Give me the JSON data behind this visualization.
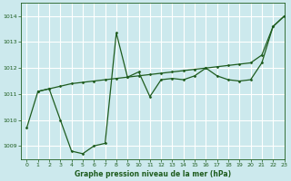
{
  "title": "Graphe pression niveau de la mer (hPa)",
  "background_color": "#cce9ed",
  "grid_color": "#ffffff",
  "line_color": "#1e5c1e",
  "marker_color": "#1e5c1e",
  "xlim": [
    -0.5,
    23
  ],
  "ylim": [
    1008.5,
    1014.5
  ],
  "yticks": [
    1009,
    1010,
    1011,
    1012,
    1013,
    1014
  ],
  "xticks": [
    0,
    1,
    2,
    3,
    4,
    5,
    6,
    7,
    8,
    9,
    10,
    11,
    12,
    13,
    14,
    15,
    16,
    17,
    18,
    19,
    20,
    21,
    22,
    23
  ],
  "series_volatile_x": [
    0,
    1,
    2,
    3,
    4,
    5,
    6,
    7,
    8,
    9,
    10,
    11,
    12,
    13,
    14,
    15,
    16,
    17,
    18,
    19,
    20,
    21,
    22,
    23
  ],
  "series_volatile_y": [
    1009.7,
    1011.1,
    1011.2,
    1010.0,
    1008.8,
    1008.7,
    1009.0,
    1009.1,
    1013.35,
    1011.65,
    1011.85,
    1010.9,
    1011.55,
    1011.6,
    1011.55,
    1011.7,
    1012.0,
    1011.7,
    1011.55,
    1011.5,
    1011.55,
    1012.2,
    1013.6,
    1014.0
  ],
  "series_trend_x": [
    1,
    2,
    3,
    4,
    5,
    6,
    7,
    8,
    9,
    10,
    11,
    12,
    13,
    14,
    15,
    16,
    17,
    18,
    19,
    20,
    21,
    22,
    23
  ],
  "series_trend_y": [
    1011.1,
    1011.2,
    1011.3,
    1011.4,
    1011.45,
    1011.5,
    1011.55,
    1011.6,
    1011.65,
    1011.7,
    1011.75,
    1011.8,
    1011.85,
    1011.9,
    1011.95,
    1012.0,
    1012.05,
    1012.1,
    1012.15,
    1012.2,
    1012.5,
    1013.6,
    1014.0
  ]
}
